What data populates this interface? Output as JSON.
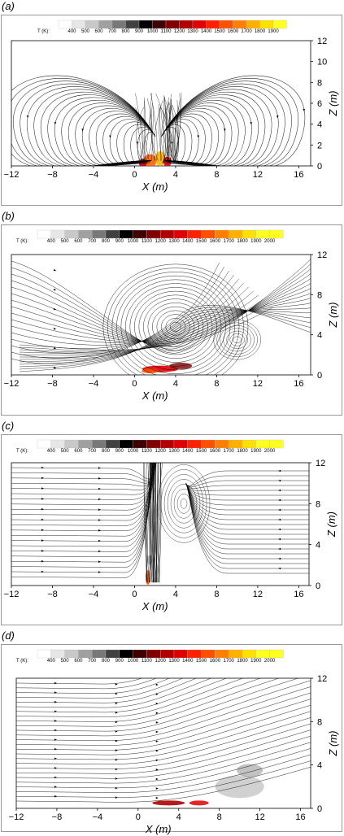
{
  "figure": {
    "panels": [
      {
        "label": "(a)",
        "colorbar_title": "T (K):",
        "colorbar_ticks": [
          "400",
          "500",
          "600",
          "700",
          "800",
          "900",
          "1000",
          "1100",
          "1200",
          "1300",
          "1400",
          "1500",
          "1600",
          "1700",
          "1800",
          "1900"
        ],
        "xlabel": "X (m)",
        "ylabel": "Z (m)",
        "xticks": [
          "−12",
          "−8",
          "−4",
          "0",
          "4",
          "8",
          "12",
          "16"
        ],
        "yticks": [
          "0",
          "2",
          "4",
          "6",
          "8",
          "10",
          "12"
        ]
      },
      {
        "label": "(b)",
        "colorbar_title": "T (K):",
        "colorbar_ticks": [
          "400",
          "500",
          "600",
          "700",
          "800",
          "900",
          "1000",
          "1100",
          "1200",
          "1300",
          "1400",
          "1500",
          "1600",
          "1700",
          "1800",
          "1900",
          "2000"
        ],
        "xlabel": "X (m)",
        "ylabel": "Z (m)",
        "xticks": [
          "−12",
          "−8",
          "−4",
          "0",
          "4",
          "8",
          "12",
          "16"
        ],
        "yticks": [
          "0",
          "4",
          "8",
          "12"
        ]
      },
      {
        "label": "(c)",
        "colorbar_title": "T (K):",
        "colorbar_ticks": [
          "400",
          "500",
          "600",
          "700",
          "800",
          "900",
          "1000",
          "1100",
          "1200",
          "1300",
          "1400",
          "1500",
          "1600",
          "1700",
          "1800",
          "1900",
          "2000"
        ],
        "xlabel": "X (m)",
        "ylabel": "Z (m)",
        "xticks": [
          "−12",
          "−8",
          "−4",
          "0",
          "4",
          "8",
          "12",
          "16"
        ],
        "yticks": [
          "0",
          "4",
          "8",
          "12"
        ]
      },
      {
        "label": "(d)",
        "colorbar_title": "T (K):",
        "colorbar_ticks": [
          "400",
          "500",
          "600",
          "700",
          "800",
          "900",
          "1000",
          "1100",
          "1200",
          "1300",
          "1400",
          "1500",
          "1600",
          "1700",
          "1800",
          "1900",
          "2000"
        ],
        "xlabel": "X (m)",
        "ylabel": "Z (m)",
        "xticks": [
          "−12",
          "−8",
          "−4",
          "0",
          "4",
          "8",
          "12",
          "16"
        ],
        "yticks": [
          "0",
          "4",
          "8",
          "12"
        ]
      }
    ],
    "colors": {
      "colorbar": [
        "#ffffff",
        "#e6e6e6",
        "#c8c8c8",
        "#a0a0a0",
        "#787878",
        "#404040",
        "#000000",
        "#400000",
        "#800000",
        "#b00000",
        "#e00000",
        "#ff2000",
        "#ff5000",
        "#ff8000",
        "#ffb000",
        "#ffe000",
        "#ffff20"
      ],
      "streamline": "#000000",
      "frame": "#999999"
    }
  }
}
